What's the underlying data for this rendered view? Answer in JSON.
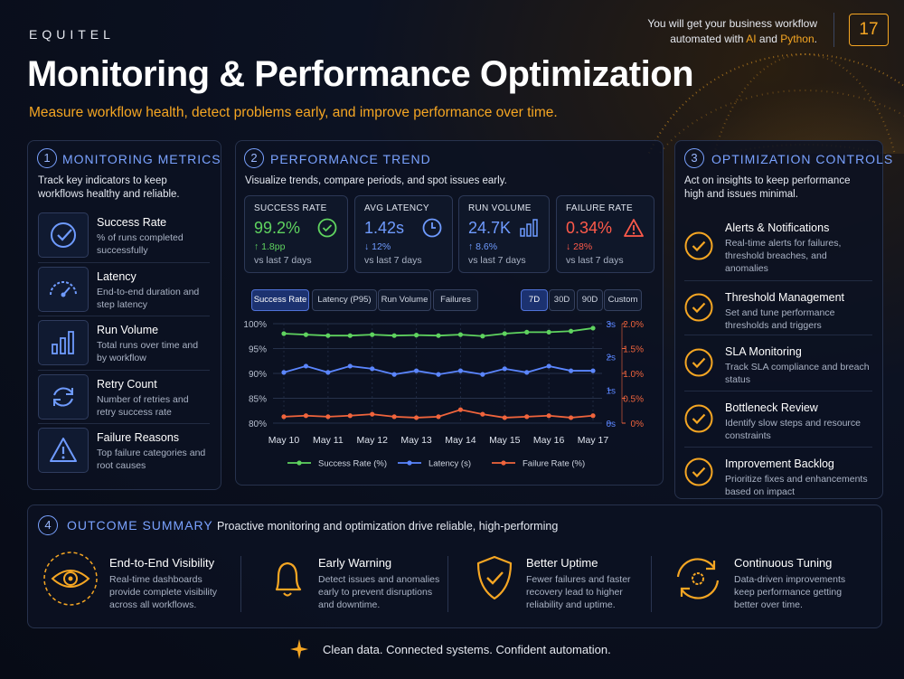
{
  "header": {
    "brand": "EQUITEL",
    "title": "Monitoring & Performance Optimization",
    "subtitle": "Measure workflow health, detect problems early, and improve performance over time.",
    "note_line1": "You will get your business workflow",
    "note_line2": [
      "automated with ",
      "AI",
      " and ",
      "Python",
      "."
    ],
    "page": "17"
  },
  "monitoring": {
    "number": "1",
    "title": "MONITORING METRICS",
    "description": "Track key indicators to keep workflows healthy and reliable.",
    "items": [
      {
        "title": "Success Rate",
        "description": "% of runs completed successfully"
      },
      {
        "title": "Latency",
        "description": "End-to-end duration and step latency"
      },
      {
        "title": "Run Volume",
        "description": "Total runs over time and by workflow"
      },
      {
        "title": "Retry Count",
        "description": "Number of retries and retry success rate"
      },
      {
        "title": "Failure Reasons",
        "description": "Top failure categories and root causes"
      }
    ]
  },
  "performance": {
    "number": "2",
    "title": "PERFORMANCE TREND",
    "description": "Visualize trends, compare periods, and spot issues early.",
    "kpis": [
      {
        "label": "SUCCESS RATE",
        "value": "99.2%",
        "delta": "↑ 1.8pp",
        "compare": "vs last 7 days",
        "color": "#5fd35f"
      },
      {
        "label": "AVG LATENCY",
        "value": "1.42s",
        "delta": "↓ 12%",
        "compare": "vs last 7 days",
        "color": "#6f9bff"
      },
      {
        "label": "RUN VOLUME",
        "value": "24.7K",
        "delta": "↑ 8.6%",
        "compare": "vs last 7 days",
        "color": "#6f9bff"
      },
      {
        "label": "FAILURE RATE",
        "value": "0.34%",
        "delta": "↓ 28%",
        "compare": "vs last 7 days",
        "color": "#ff5a4a"
      }
    ],
    "tabs": [
      "Success Rate",
      "Latency (P95)",
      "Run Volume",
      "Failures"
    ],
    "ranges": [
      "7D",
      "30D",
      "90D",
      "Custom"
    ]
  },
  "chart_data": {
    "type": "line",
    "categories": [
      "May 10",
      null,
      "May 11",
      null,
      "May 12",
      null,
      "May 13",
      null,
      "May 14",
      null,
      "May 15",
      null,
      "May 16",
      null,
      "May 17"
    ],
    "series": [
      {
        "name": "Success Rate (%)",
        "color": "#5fd35f",
        "axis": "y",
        "values": [
          98.0,
          97.8,
          97.6,
          97.6,
          97.8,
          97.6,
          97.7,
          97.6,
          97.8,
          97.5,
          98.0,
          98.3,
          98.3,
          98.5,
          99.1
        ]
      },
      {
        "name": "Latency (s)",
        "color": "#5b86ff",
        "axis": "y2",
        "values": [
          1.53,
          1.72,
          1.53,
          1.72,
          1.64,
          1.47,
          1.58,
          1.47,
          1.58,
          1.47,
          1.64,
          1.53,
          1.72,
          1.58,
          1.58
        ]
      },
      {
        "name": "Failure Rate (%)",
        "color": "#f0643c",
        "axis": "y3",
        "values": [
          0.13,
          0.15,
          0.13,
          0.15,
          0.18,
          0.13,
          0.11,
          0.13,
          0.27,
          0.18,
          0.11,
          0.13,
          0.15,
          0.11,
          0.15
        ]
      }
    ],
    "ylim": [
      80,
      100
    ],
    "yticks": [
      {
        "value": 80,
        "label": "80%"
      },
      {
        "value": 85,
        "label": "85%"
      },
      {
        "value": 90,
        "label": "90%"
      },
      {
        "value": 95,
        "label": "95%"
      },
      {
        "value": 100,
        "label": "100%"
      }
    ],
    "y2lim": [
      0,
      3
    ],
    "y2ticks": [
      {
        "value": 0,
        "label": "0s"
      },
      {
        "value": 1,
        "label": "1s"
      },
      {
        "value": 2,
        "label": "2s"
      },
      {
        "value": 3,
        "label": "3s"
      }
    ],
    "y3lim": [
      0,
      2
    ],
    "y3ticks": [
      {
        "value": 0,
        "label": "0%"
      },
      {
        "value": 0.5,
        "label": "0.5%"
      },
      {
        "value": 1,
        "label": "1.0%"
      },
      {
        "value": 1.5,
        "label": "1.5%"
      },
      {
        "value": 2,
        "label": "2.0%"
      }
    ],
    "grid": true
  },
  "optimization": {
    "number": "3",
    "title": "OPTIMIZATION CONTROLS",
    "description": "Act on insights to keep performance high and issues minimal.",
    "items": [
      {
        "title": "Alerts & Notifications",
        "description": "Real-time alerts for failures, threshold breaches, and anomalies"
      },
      {
        "title": "Threshold Management",
        "description": "Set and tune performance thresholds and triggers"
      },
      {
        "title": "SLA Monitoring",
        "description": "Track SLA compliance and breach status"
      },
      {
        "title": "Bottleneck Review",
        "description": "Identify slow steps and resource constraints"
      },
      {
        "title": "Improvement Backlog",
        "description": "Prioritize fixes and enhancements based on impact"
      }
    ]
  },
  "outcome": {
    "number": "4",
    "title": "OUTCOME SUMMARY",
    "description": "Proactive monitoring and optimization drive reliable, high-performing",
    "items": [
      {
        "title": "End-to-End Visibility",
        "description": "Real-time dashboards provide complete visibility across all workflows."
      },
      {
        "title": "Early Warning",
        "description": "Detect issues and anomalies early to prevent disruptions and downtime."
      },
      {
        "title": "Better Uptime",
        "description": "Fewer failures and faster recovery lead to higher reliability and uptime."
      },
      {
        "title": "Continuous Tuning",
        "description": "Data-driven improvements keep performance getting better over time."
      }
    ]
  },
  "footer": {
    "tagline": "Clean data. Connected systems. Confident automation."
  }
}
